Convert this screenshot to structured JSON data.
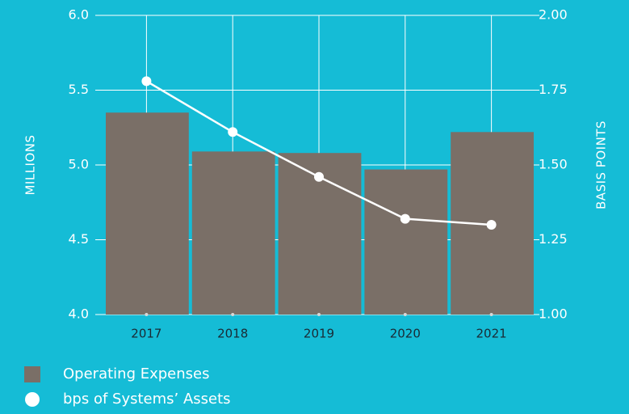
{
  "chart_data": {
    "type": "combo",
    "categories": [
      "2017",
      "2018",
      "2019",
      "2020",
      "2021"
    ],
    "series": [
      {
        "name": "Operating Expenses",
        "type": "bar",
        "color": "#7a6f67",
        "values": [
          5.35,
          5.09,
          5.08,
          4.97,
          5.22
        ]
      },
      {
        "name": "bps of Systems’ Assets",
        "type": "line",
        "axis": "y2",
        "color": "#ffffff",
        "values": [
          1.78,
          1.61,
          1.46,
          1.32,
          1.3
        ]
      }
    ],
    "ylabel": "MILLIONS",
    "y2label": "BASIS POINTS",
    "ylim": [
      4.0,
      6.0
    ],
    "yticks": [
      {
        "value": 4,
        "label": "4.0"
      },
      4.5,
      {
        "value": 5,
        "label": "5.0"
      },
      5.5,
      {
        "value": 6,
        "label": "6.0"
      }
    ],
    "y2lim": [
      1.0,
      2.0
    ],
    "y2ticks": [
      {
        "value": 1,
        "label": "1.00"
      },
      1.25,
      {
        "value": 1.5,
        "label": "1.50"
      },
      1.75,
      {
        "value": 2,
        "label": "2.00"
      }
    ],
    "grid": true,
    "legend": "bottom-left"
  }
}
